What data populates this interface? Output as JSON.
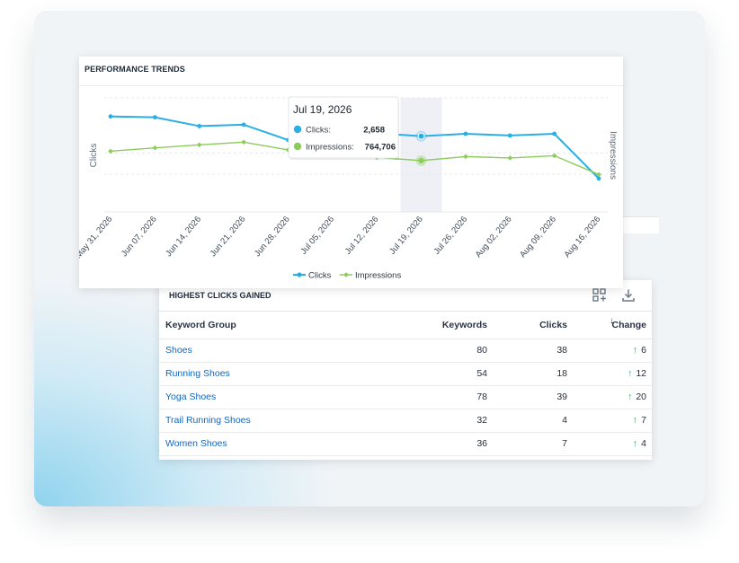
{
  "colors": {
    "clicks": "#29aee6",
    "impressions": "#8ccc5c",
    "link": "#1565b8",
    "up_arrow": "#3aa655",
    "highlight_band": "#eef0f6"
  },
  "performance_trends": {
    "title": "PERFORMANCE TRENDS",
    "tooltip": {
      "date": "Jul 19, 2026",
      "clicks_label": "Clicks:",
      "clicks_value": "2,658",
      "impressions_label": "Impressions:",
      "impressions_value": "764,706"
    }
  },
  "chart_data": {
    "type": "line",
    "y_left_label": "Clicks",
    "y_right_label": "Impressions",
    "x": [
      "May 31, 2026",
      "Jun 07, 2026",
      "Jun 14, 2026",
      "Jun 21, 2026",
      "Jun 28, 2026",
      "Jul 05, 2026",
      "Jul 12, 2026",
      "Jul 19, 2026",
      "Jul 26, 2026",
      "Aug 02, 2026",
      "Aug 09, 2026",
      "Aug 16, 2026"
    ],
    "series": [
      {
        "name": "Clicks",
        "axis": "left",
        "values": [
          3350,
          3320,
          3010,
          3060,
          2520,
          3060,
          2760,
          2658,
          2740,
          2680,
          2740,
          1170
        ],
        "color": "#29aee6"
      },
      {
        "name": "Impressions",
        "axis": "right",
        "values": [
          905000,
          955000,
          1000000,
          1040000,
          925000,
          905000,
          812000,
          764706,
          825000,
          804000,
          838000,
          558000
        ],
        "color": "#8ccc5c"
      }
    ],
    "y_left_range": [
      0,
      4000
    ],
    "y_right_range": [
      0,
      1700000
    ],
    "highlighted_x": "Jul 19, 2026",
    "grid": true,
    "legend_position": "bottom-center"
  },
  "highest_clicks": {
    "title": "HIGHEST CLICKS GAINED",
    "icons": {
      "qr": "qr-code-icon",
      "download": "download-icon"
    },
    "columns": {
      "group": "Keyword Group",
      "keywords": "Keywords",
      "clicks": "Clicks",
      "change": "Change"
    },
    "sort_indicator": "↓",
    "rows": [
      {
        "group": "Shoes",
        "keywords": "80",
        "clicks": "38",
        "change": "6"
      },
      {
        "group": "Running Shoes",
        "keywords": "54",
        "clicks": "18",
        "change": "12"
      },
      {
        "group": "Yoga Shoes",
        "keywords": "78",
        "clicks": "39",
        "change": "20"
      },
      {
        "group": "Trail Running Shoes",
        "keywords": "32",
        "clicks": "4",
        "change": "7"
      },
      {
        "group": "Women Shoes",
        "keywords": "36",
        "clicks": "7",
        "change": "4"
      }
    ],
    "change_arrow": "↑"
  }
}
